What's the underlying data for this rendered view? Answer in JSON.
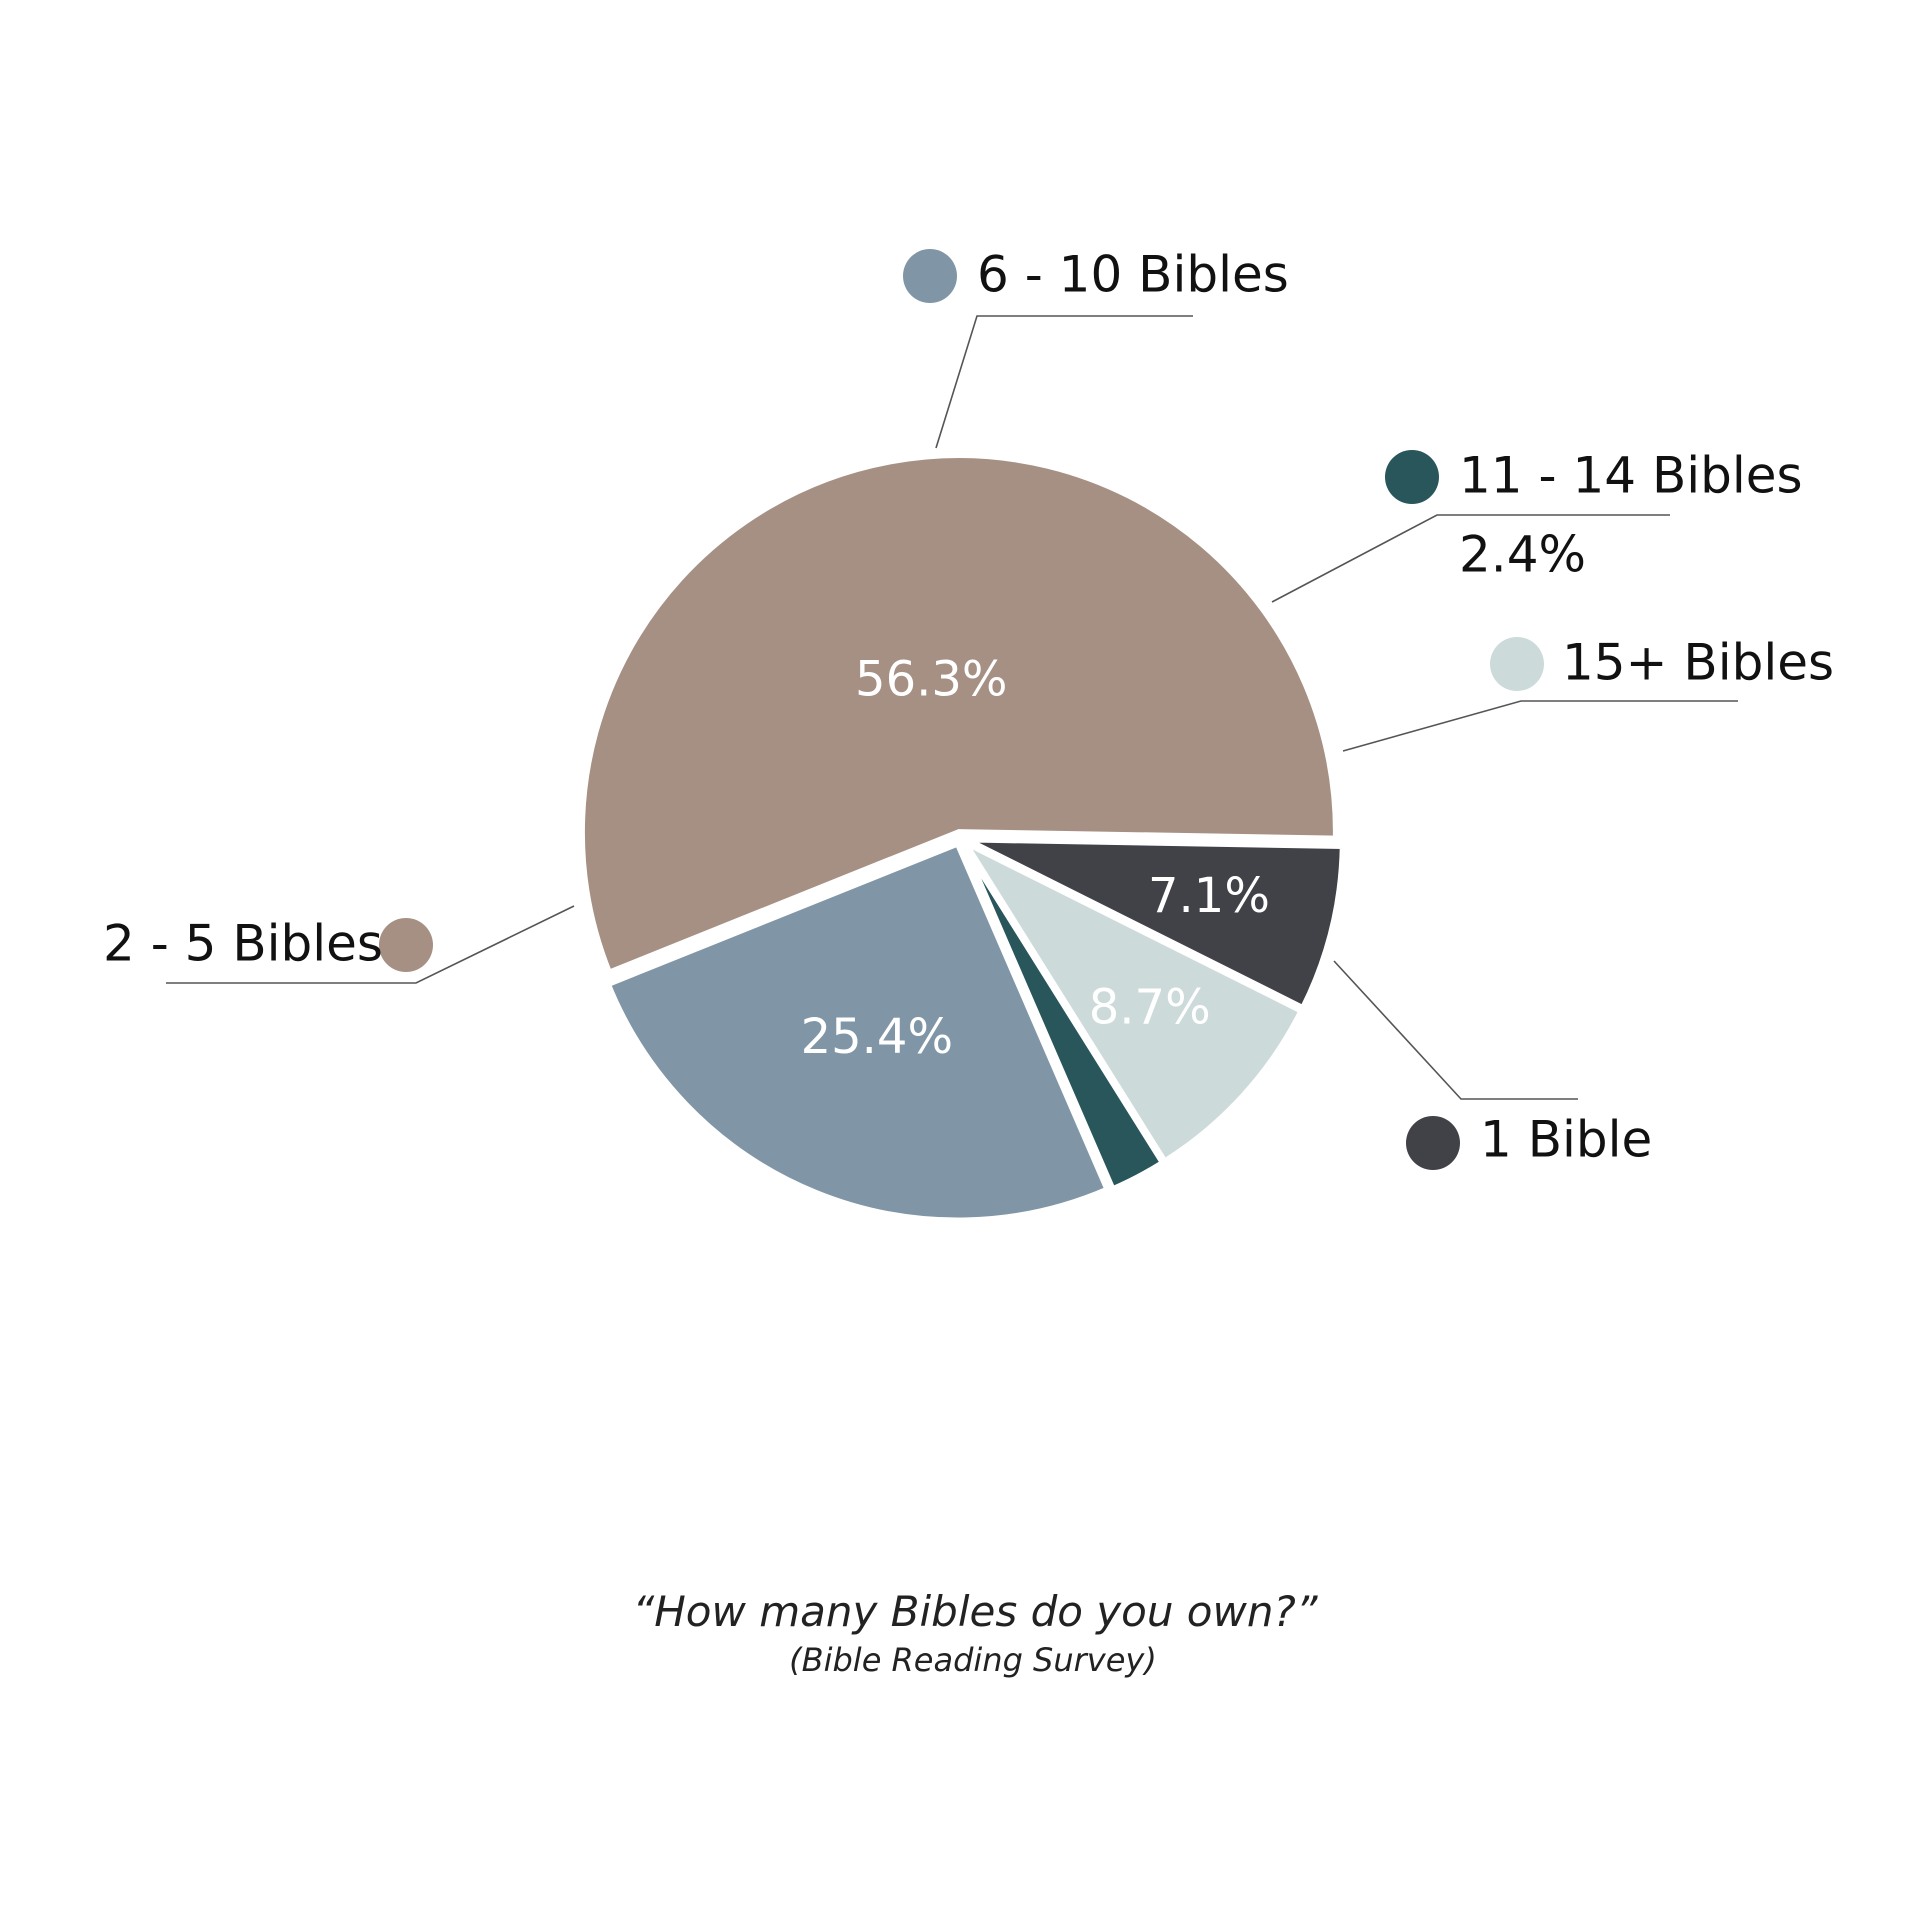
{
  "chart_data": {
    "type": "pie",
    "title": "“How many Bibles do you own?”",
    "subtitle": "(Bible Reading Survey)",
    "legend_placement": "around pie, with leader lines",
    "slices": [
      {
        "label": "1 Bible",
        "value": 7.1,
        "value_label": "7.1%",
        "color": "#404248"
      },
      {
        "label": "15+ Bibles",
        "value": 8.7,
        "value_label": "8.7%",
        "color": "#ccdbda"
      },
      {
        "label": "11 - 14 Bibles",
        "value": 2.4,
        "value_label": "2.4%",
        "color": "#28565a"
      },
      {
        "label": "6 - 10 Bibles",
        "value": 25.4,
        "value_label": "25.4%",
        "color": "#8096a6"
      },
      {
        "label": "2 - 5 Bibles",
        "value": 56.3,
        "value_label": "56.3%",
        "color": "#a69083"
      }
    ]
  }
}
